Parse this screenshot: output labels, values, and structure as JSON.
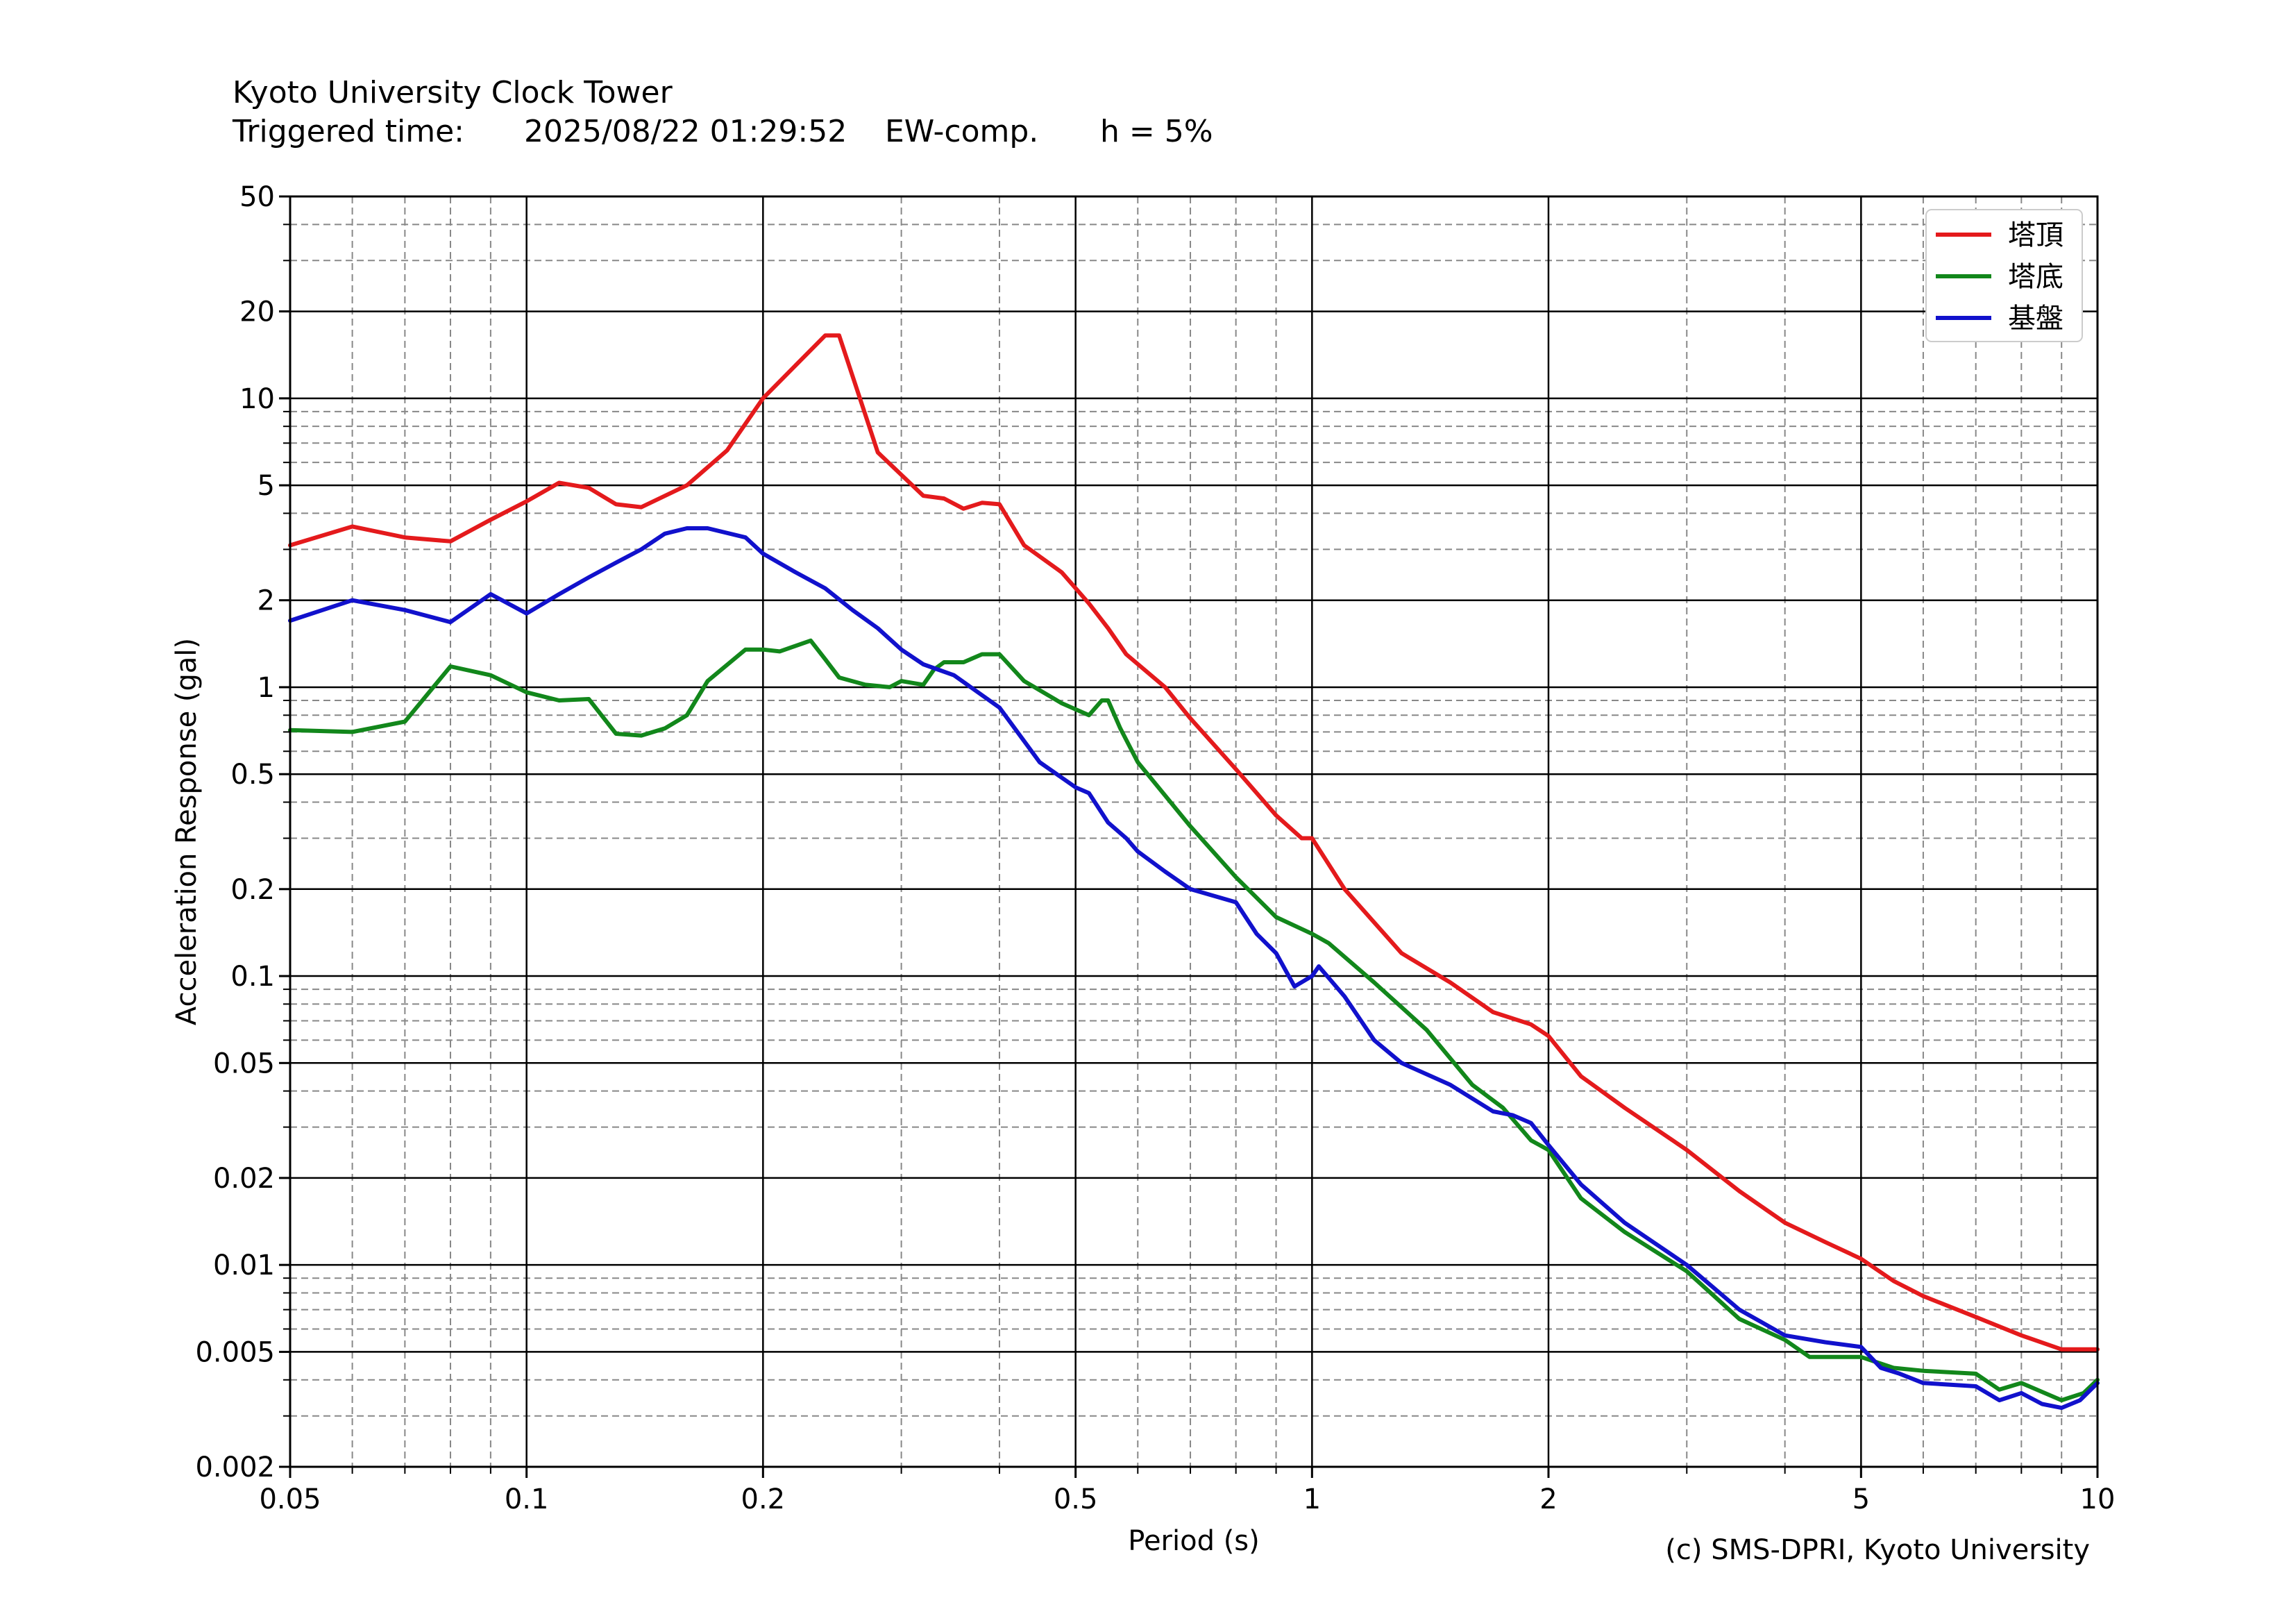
{
  "header": {
    "title": "Kyoto University Clock Tower",
    "trigger_label": "Triggered time:",
    "trigger_time": "2025/08/22 01:29:52",
    "component": "EW-comp.",
    "damping": "h = 5%"
  },
  "credit": "(c) SMS-DPRI, Kyoto University",
  "chart_data": {
    "type": "line",
    "xlabel": "Period (s)",
    "ylabel": "Acceleration Response (gal)",
    "xscale": "log",
    "yscale": "log",
    "xlim": [
      0.05,
      10
    ],
    "ylim": [
      0.002,
      50
    ],
    "x_ticks": [
      0.05,
      0.1,
      0.2,
      0.5,
      1,
      2,
      5,
      10
    ],
    "x_tick_labels": [
      "0.05",
      "0.1",
      "0.2",
      "0.5",
      "1",
      "2",
      "5",
      "10"
    ],
    "y_ticks": [
      0.002,
      0.005,
      0.01,
      0.02,
      0.05,
      0.1,
      0.2,
      0.5,
      1,
      2,
      5,
      10,
      20,
      50
    ],
    "y_tick_labels": [
      "0.002",
      "0.005",
      "0.01",
      "0.02",
      "0.05",
      "0.1",
      "0.2",
      "0.5",
      "1",
      "2",
      "5",
      "10",
      "20",
      "50"
    ],
    "grid": true,
    "legend_position": "top-right",
    "series": [
      {
        "name": "塔頂",
        "color": "#e41a1c",
        "points": [
          [
            0.05,
            3.1
          ],
          [
            0.06,
            3.6
          ],
          [
            0.07,
            3.3
          ],
          [
            0.08,
            3.2
          ],
          [
            0.09,
            3.8
          ],
          [
            0.1,
            4.4
          ],
          [
            0.11,
            5.1
          ],
          [
            0.12,
            4.9
          ],
          [
            0.13,
            4.3
          ],
          [
            0.14,
            4.2
          ],
          [
            0.16,
            5.0
          ],
          [
            0.18,
            6.6
          ],
          [
            0.2,
            10
          ],
          [
            0.22,
            13
          ],
          [
            0.24,
            16.5
          ],
          [
            0.25,
            16.5
          ],
          [
            0.28,
            6.5
          ],
          [
            0.32,
            4.6
          ],
          [
            0.34,
            4.5
          ],
          [
            0.36,
            4.15
          ],
          [
            0.38,
            4.35
          ],
          [
            0.4,
            4.3
          ],
          [
            0.43,
            3.1
          ],
          [
            0.48,
            2.5
          ],
          [
            0.52,
            1.95
          ],
          [
            0.55,
            1.6
          ],
          [
            0.58,
            1.3
          ],
          [
            0.65,
            1.0
          ],
          [
            0.7,
            0.78
          ],
          [
            0.8,
            0.52
          ],
          [
            0.9,
            0.36
          ],
          [
            0.97,
            0.3
          ],
          [
            1.0,
            0.3
          ],
          [
            1.1,
            0.2
          ],
          [
            1.3,
            0.12
          ],
          [
            1.5,
            0.095
          ],
          [
            1.7,
            0.075
          ],
          [
            1.9,
            0.068
          ],
          [
            2.0,
            0.062
          ],
          [
            2.2,
            0.045
          ],
          [
            2.5,
            0.035
          ],
          [
            3.0,
            0.025
          ],
          [
            3.5,
            0.018
          ],
          [
            4.0,
            0.014
          ],
          [
            4.5,
            0.012
          ],
          [
            5.0,
            0.0105
          ],
          [
            5.5,
            0.0088
          ],
          [
            6.0,
            0.0078
          ],
          [
            7.0,
            0.0066
          ],
          [
            8.0,
            0.0057
          ],
          [
            9.0,
            0.0051
          ],
          [
            10.0,
            0.0051
          ]
        ]
      },
      {
        "name": "塔底",
        "color": "#12871b",
        "points": [
          [
            0.05,
            0.71
          ],
          [
            0.06,
            0.7
          ],
          [
            0.07,
            0.76
          ],
          [
            0.08,
            1.18
          ],
          [
            0.09,
            1.1
          ],
          [
            0.1,
            0.96
          ],
          [
            0.11,
            0.9
          ],
          [
            0.12,
            0.91
          ],
          [
            0.13,
            0.69
          ],
          [
            0.14,
            0.68
          ],
          [
            0.15,
            0.72
          ],
          [
            0.16,
            0.8
          ],
          [
            0.17,
            1.05
          ],
          [
            0.19,
            1.35
          ],
          [
            0.2,
            1.35
          ],
          [
            0.21,
            1.33
          ],
          [
            0.23,
            1.45
          ],
          [
            0.24,
            1.25
          ],
          [
            0.25,
            1.08
          ],
          [
            0.27,
            1.02
          ],
          [
            0.29,
            1.0
          ],
          [
            0.3,
            1.05
          ],
          [
            0.32,
            1.02
          ],
          [
            0.33,
            1.15
          ],
          [
            0.34,
            1.22
          ],
          [
            0.36,
            1.22
          ],
          [
            0.38,
            1.3
          ],
          [
            0.4,
            1.3
          ],
          [
            0.43,
            1.05
          ],
          [
            0.48,
            0.88
          ],
          [
            0.52,
            0.8
          ],
          [
            0.54,
            0.9
          ],
          [
            0.55,
            0.9
          ],
          [
            0.57,
            0.72
          ],
          [
            0.6,
            0.55
          ],
          [
            0.7,
            0.33
          ],
          [
            0.8,
            0.22
          ],
          [
            0.9,
            0.16
          ],
          [
            1.0,
            0.14
          ],
          [
            1.05,
            0.13
          ],
          [
            1.2,
            0.095
          ],
          [
            1.4,
            0.065
          ],
          [
            1.6,
            0.042
          ],
          [
            1.75,
            0.035
          ],
          [
            1.9,
            0.027
          ],
          [
            2.0,
            0.025
          ],
          [
            2.2,
            0.017
          ],
          [
            2.5,
            0.013
          ],
          [
            3.0,
            0.0095
          ],
          [
            3.5,
            0.0065
          ],
          [
            4.0,
            0.0055
          ],
          [
            4.3,
            0.0048
          ],
          [
            4.7,
            0.0048
          ],
          [
            5.0,
            0.0048
          ],
          [
            5.5,
            0.0044
          ],
          [
            6.0,
            0.0043
          ],
          [
            7.0,
            0.0042
          ],
          [
            7.5,
            0.0037
          ],
          [
            8.0,
            0.0039
          ],
          [
            9.0,
            0.0034
          ],
          [
            9.6,
            0.0036
          ],
          [
            10.0,
            0.004
          ]
        ]
      },
      {
        "name": "基盤",
        "color": "#1111cc",
        "points": [
          [
            0.05,
            1.7
          ],
          [
            0.06,
            2.0
          ],
          [
            0.07,
            1.85
          ],
          [
            0.08,
            1.68
          ],
          [
            0.09,
            2.1
          ],
          [
            0.1,
            1.8
          ],
          [
            0.11,
            2.1
          ],
          [
            0.12,
            2.4
          ],
          [
            0.13,
            2.7
          ],
          [
            0.14,
            3.0
          ],
          [
            0.15,
            3.4
          ],
          [
            0.16,
            3.55
          ],
          [
            0.17,
            3.55
          ],
          [
            0.19,
            3.3
          ],
          [
            0.2,
            2.9
          ],
          [
            0.22,
            2.5
          ],
          [
            0.24,
            2.2
          ],
          [
            0.26,
            1.85
          ],
          [
            0.28,
            1.6
          ],
          [
            0.3,
            1.35
          ],
          [
            0.32,
            1.2
          ],
          [
            0.35,
            1.1
          ],
          [
            0.4,
            0.85
          ],
          [
            0.45,
            0.55
          ],
          [
            0.5,
            0.45
          ],
          [
            0.52,
            0.43
          ],
          [
            0.55,
            0.34
          ],
          [
            0.58,
            0.3
          ],
          [
            0.6,
            0.27
          ],
          [
            0.65,
            0.23
          ],
          [
            0.7,
            0.2
          ],
          [
            0.8,
            0.18
          ],
          [
            0.85,
            0.14
          ],
          [
            0.9,
            0.12
          ],
          [
            0.95,
            0.092
          ],
          [
            1.0,
            0.1
          ],
          [
            1.02,
            0.108
          ],
          [
            1.1,
            0.085
          ],
          [
            1.2,
            0.06
          ],
          [
            1.3,
            0.05
          ],
          [
            1.5,
            0.042
          ],
          [
            1.7,
            0.034
          ],
          [
            1.8,
            0.033
          ],
          [
            1.9,
            0.031
          ],
          [
            2.0,
            0.026
          ],
          [
            2.2,
            0.019
          ],
          [
            2.5,
            0.014
          ],
          [
            3.0,
            0.01
          ],
          [
            3.5,
            0.007
          ],
          [
            4.0,
            0.0057
          ],
          [
            4.5,
            0.0054
          ],
          [
            5.0,
            0.0052
          ],
          [
            5.3,
            0.0044
          ],
          [
            5.6,
            0.0042
          ],
          [
            6.0,
            0.0039
          ],
          [
            7.0,
            0.0038
          ],
          [
            7.5,
            0.0034
          ],
          [
            8.0,
            0.0036
          ],
          [
            8.5,
            0.0033
          ],
          [
            9.0,
            0.0032
          ],
          [
            9.5,
            0.0034
          ],
          [
            10.0,
            0.0039
          ]
        ]
      }
    ]
  }
}
